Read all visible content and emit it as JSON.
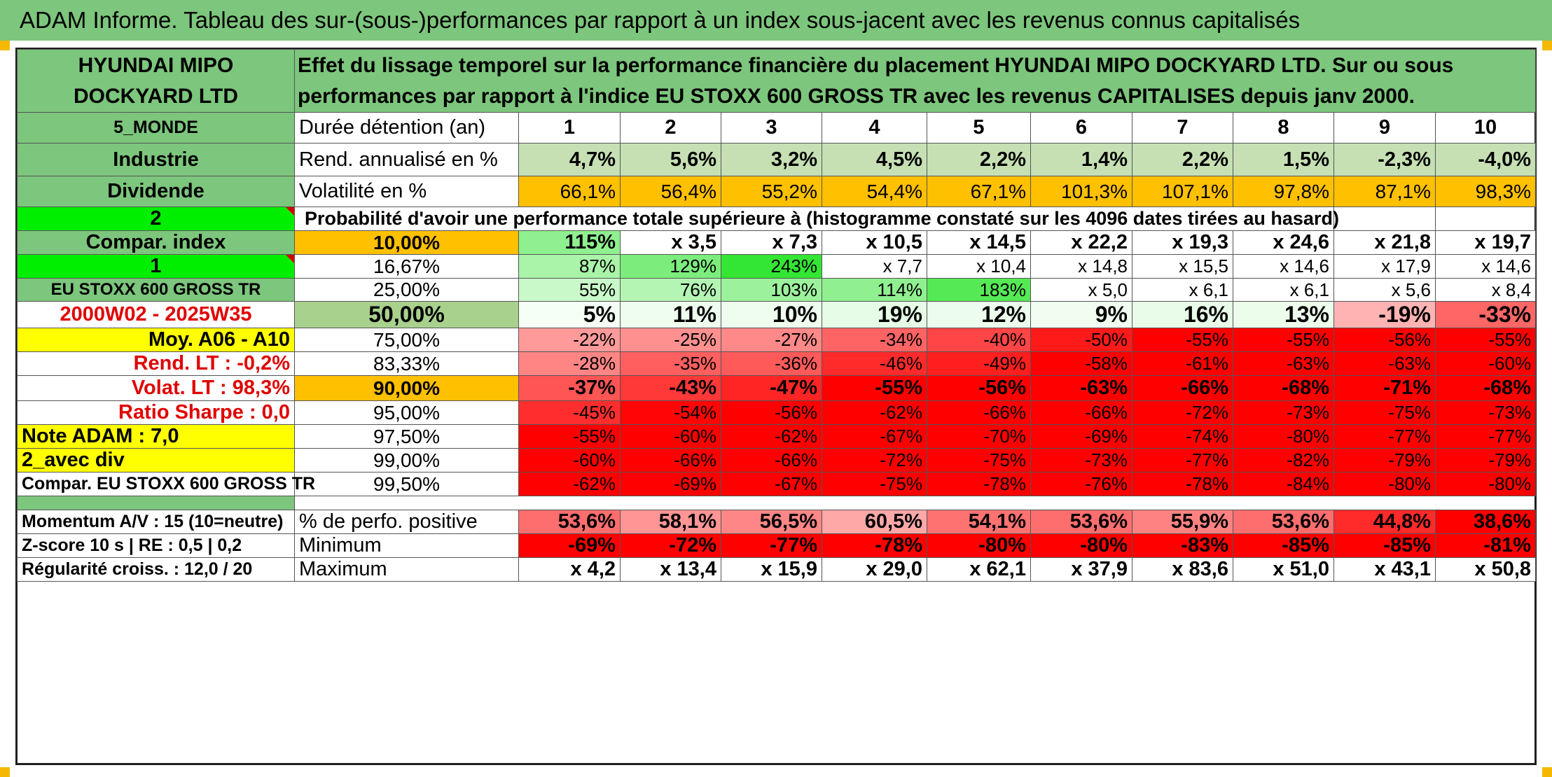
{
  "title": "ADAM Informe. Tableau des sur-(sous-)performances par rapport à un index sous-jacent avec les revenus connus capitalisés",
  "company": "HYUNDAI MIPO DOCKYARD LTD",
  "description": "Effet du lissage temporel sur la performance financière du placement HYUNDAI MIPO DOCKYARD LTD. Sur ou sous performances par rapport à l'indice EU STOXX 600 GROSS TR avec les revenus CAPITALISES depuis janv 2000.",
  "colors": {
    "green_header": "#7dc67d",
    "light_green": "#c6e0b4",
    "orange": "#ffc000",
    "bright_green": "#00ee00",
    "yellow": "#ffff00",
    "red_text": "#e00000"
  },
  "left_panel": [
    {
      "text": "5_MONDE",
      "bg": "#7dc67d",
      "color": "#000000",
      "bold": true,
      "align": "center",
      "size": 25
    },
    {
      "text": "Industrie",
      "bg": "#7dc67d",
      "color": "#000000",
      "bold": true,
      "align": "center",
      "size": 29
    },
    {
      "text": "Dividende",
      "bg": "#7dc67d",
      "color": "#000000",
      "bold": true,
      "align": "center",
      "size": 29
    },
    {
      "text": "2",
      "bg": "#00ee00",
      "color": "#000000",
      "bold": true,
      "align": "center",
      "size": 29,
      "mark": true
    },
    {
      "text": "Compar. index",
      "bg": "#7dc67d",
      "color": "#000000",
      "bold": true,
      "align": "center",
      "size": 29
    },
    {
      "text": "1",
      "bg": "#00ee00",
      "color": "#000000",
      "bold": true,
      "align": "center",
      "size": 29,
      "mark": true
    },
    {
      "text": "EU STOXX 600 GROSS TR",
      "bg": "#7dc67d",
      "color": "#000000",
      "bold": true,
      "align": "center",
      "size": 24
    },
    {
      "text": "2000W02 - 2025W35",
      "bg": "#ffffff",
      "color": "#e00000",
      "bold": true,
      "align": "center",
      "size": 29
    },
    {
      "text": "Moy. A06 - A10",
      "bg": "#ffff00",
      "color": "#000000",
      "bold": true,
      "align": "right",
      "size": 29
    },
    {
      "text": "Rend. LT :    -0,2%",
      "bg": "#ffffff",
      "color": "#e00000",
      "bold": true,
      "align": "right",
      "size": 29
    },
    {
      "text": "Volat. LT :    98,3%",
      "bg": "#ffffff",
      "color": "#e00000",
      "bold": true,
      "align": "right",
      "size": 29
    },
    {
      "text": "Ratio Sharpe :     0,0",
      "bg": "#ffffff",
      "color": "#e00000",
      "bold": true,
      "align": "right",
      "size": 29
    },
    {
      "text": "Note ADAM : 7,0",
      "bg": "#ffff00",
      "color": "#000000",
      "bold": true,
      "align": "left",
      "size": 29
    },
    {
      "text": "2_avec div",
      "bg": "#ffff00",
      "color": "#000000",
      "bold": true,
      "align": "left",
      "size": 29
    },
    {
      "text": "Compar. EU STOXX 600 GROSS TR",
      "bg": "#ffffff",
      "color": "#000000",
      "bold": true,
      "align": "center",
      "size": 25
    },
    {
      "text": "",
      "bg": "#7dc67d",
      "color": "#000000",
      "bold": false,
      "align": "center",
      "size": 25
    },
    {
      "text": "Momentum A/V : 15 (10=neutre)",
      "bg": "#ffffff",
      "color": "#000000",
      "bold": true,
      "align": "left",
      "size": 25
    },
    {
      "text": "Z-score 10 s | RE : 0,5 | 0,2",
      "bg": "#ffffff",
      "color": "#000000",
      "bold": true,
      "align": "left",
      "size": 25
    },
    {
      "text": "Régularité croiss. : 12,0 / 20",
      "bg": "#ffffff",
      "color": "#000000",
      "bold": true,
      "align": "left",
      "size": 25
    }
  ],
  "holding_label": "Durée détention (an)",
  "years": [
    "1",
    "2",
    "3",
    "4",
    "5",
    "6",
    "7",
    "8",
    "9",
    "10"
  ],
  "rend_label": "Rend. annualisé en %",
  "rend_values": [
    "4,7%",
    "5,6%",
    "3,2%",
    "4,5%",
    "2,2%",
    "1,4%",
    "2,2%",
    "1,5%",
    "-2,3%",
    "-4,0%"
  ],
  "vol_label": "Volatilité en %",
  "vol_values": [
    "66,1%",
    "56,4%",
    "55,2%",
    "54,4%",
    "67,1%",
    "101,3%",
    "107,1%",
    "97,8%",
    "87,1%",
    "98,3%"
  ],
  "prob_title": "Probabilité d'avoir une performance totale supérieure à (histogramme constaté sur les 4096 dates tirées au hasard)",
  "percentile_rows": [
    {
      "pct": "10,00%",
      "pct_bg": "#ffc000",
      "bold": true,
      "cells": [
        {
          "v": "115%",
          "bg": "#8ff08f"
        },
        {
          "v": "x 3,5",
          "bg": "#ffffff"
        },
        {
          "v": "x 7,3",
          "bg": "#ffffff"
        },
        {
          "v": "x 10,5",
          "bg": "#ffffff"
        },
        {
          "v": "x 14,5",
          "bg": "#ffffff"
        },
        {
          "v": "x 22,2",
          "bg": "#ffffff"
        },
        {
          "v": "x 19,3",
          "bg": "#ffffff"
        },
        {
          "v": "x 24,6",
          "bg": "#ffffff"
        },
        {
          "v": "x 21,8",
          "bg": "#ffffff"
        },
        {
          "v": "x 19,7",
          "bg": "#ffffff"
        }
      ]
    },
    {
      "pct": "16,67%",
      "pct_bg": "#ffffff",
      "bold": false,
      "cells": [
        {
          "v": "87%",
          "bg": "#a9f4a9"
        },
        {
          "v": "129%",
          "bg": "#7ced7c"
        },
        {
          "v": "243%",
          "bg": "#33e633"
        },
        {
          "v": "x 7,7",
          "bg": "#ffffff"
        },
        {
          "v": "x 10,4",
          "bg": "#ffffff"
        },
        {
          "v": "x 14,8",
          "bg": "#ffffff"
        },
        {
          "v": "x 15,5",
          "bg": "#ffffff"
        },
        {
          "v": "x 14,6",
          "bg": "#ffffff"
        },
        {
          "v": "x 17,9",
          "bg": "#ffffff"
        },
        {
          "v": "x 14,6",
          "bg": "#ffffff"
        }
      ]
    },
    {
      "pct": "25,00%",
      "pct_bg": "#ffffff",
      "bold": false,
      "cells": [
        {
          "v": "55%",
          "bg": "#c9f8c9"
        },
        {
          "v": "76%",
          "bg": "#b4f5b4"
        },
        {
          "v": "103%",
          "bg": "#9cf29c"
        },
        {
          "v": "114%",
          "bg": "#90f090"
        },
        {
          "v": "183%",
          "bg": "#55ea55"
        },
        {
          "v": "x 5,0",
          "bg": "#ffffff"
        },
        {
          "v": "x 6,1",
          "bg": "#ffffff"
        },
        {
          "v": "x 6,1",
          "bg": "#ffffff"
        },
        {
          "v": "x 5,6",
          "bg": "#ffffff"
        },
        {
          "v": "x 8,4",
          "bg": "#ffffff"
        }
      ]
    },
    {
      "pct": "50,00%",
      "pct_bg": "#a9d18e",
      "bold": true,
      "cells": [
        {
          "v": "5%",
          "bg": "#f5fff5"
        },
        {
          "v": "11%",
          "bg": "#eefdee"
        },
        {
          "v": "10%",
          "bg": "#effdef"
        },
        {
          "v": "19%",
          "bg": "#e6fce6"
        },
        {
          "v": "12%",
          "bg": "#edfded"
        },
        {
          "v": "9%",
          "bg": "#f0fdf0"
        },
        {
          "v": "16%",
          "bg": "#e9fce9"
        },
        {
          "v": "13%",
          "bg": "#ecfdec"
        },
        {
          "v": "-19%",
          "bg": "#ffb3b3"
        },
        {
          "v": "-33%",
          "bg": "#ff6666"
        }
      ]
    },
    {
      "pct": "75,00%",
      "pct_bg": "#ffffff",
      "bold": false,
      "cells": [
        {
          "v": "-22%",
          "bg": "#ff9a9a"
        },
        {
          "v": "-25%",
          "bg": "#ff9090"
        },
        {
          "v": "-27%",
          "bg": "#ff8888"
        },
        {
          "v": "-34%",
          "bg": "#ff6464"
        },
        {
          "v": "-40%",
          "bg": "#ff4545"
        },
        {
          "v": "-50%",
          "bg": "#ff1a1a"
        },
        {
          "v": "-55%",
          "bg": "#ff0000"
        },
        {
          "v": "-55%",
          "bg": "#ff0000"
        },
        {
          "v": "-56%",
          "bg": "#ff0000"
        },
        {
          "v": "-55%",
          "bg": "#ff0000"
        }
      ]
    },
    {
      "pct": "83,33%",
      "pct_bg": "#ffffff",
      "bold": false,
      "cells": [
        {
          "v": "-28%",
          "bg": "#ff8585"
        },
        {
          "v": "-35%",
          "bg": "#ff5f5f"
        },
        {
          "v": "-36%",
          "bg": "#ff5a5a"
        },
        {
          "v": "-46%",
          "bg": "#ff2a2a"
        },
        {
          "v": "-49%",
          "bg": "#ff1f1f"
        },
        {
          "v": "-58%",
          "bg": "#ff0000"
        },
        {
          "v": "-61%",
          "bg": "#ff0000"
        },
        {
          "v": "-63%",
          "bg": "#ff0000"
        },
        {
          "v": "-63%",
          "bg": "#ff0000"
        },
        {
          "v": "-60%",
          "bg": "#ff0000"
        }
      ]
    },
    {
      "pct": "90,00%",
      "pct_bg": "#ffc000",
      "bold": true,
      "cells": [
        {
          "v": "-37%",
          "bg": "#ff5555"
        },
        {
          "v": "-43%",
          "bg": "#ff3838"
        },
        {
          "v": "-47%",
          "bg": "#ff2525"
        },
        {
          "v": "-55%",
          "bg": "#ff0000"
        },
        {
          "v": "-56%",
          "bg": "#ff0000"
        },
        {
          "v": "-63%",
          "bg": "#ff0000"
        },
        {
          "v": "-66%",
          "bg": "#ff0000"
        },
        {
          "v": "-68%",
          "bg": "#ff0000"
        },
        {
          "v": "-71%",
          "bg": "#ff0000"
        },
        {
          "v": "-68%",
          "bg": "#ff0000"
        }
      ]
    },
    {
      "pct": "95,00%",
      "pct_bg": "#ffffff",
      "bold": false,
      "cells": [
        {
          "v": "-45%",
          "bg": "#ff2d2d"
        },
        {
          "v": "-54%",
          "bg": "#ff0505"
        },
        {
          "v": "-56%",
          "bg": "#ff0000"
        },
        {
          "v": "-62%",
          "bg": "#ff0000"
        },
        {
          "v": "-66%",
          "bg": "#ff0000"
        },
        {
          "v": "-66%",
          "bg": "#ff0000"
        },
        {
          "v": "-72%",
          "bg": "#ff0000"
        },
        {
          "v": "-73%",
          "bg": "#ff0000"
        },
        {
          "v": "-75%",
          "bg": "#ff0000"
        },
        {
          "v": "-73%",
          "bg": "#ff0000"
        }
      ]
    },
    {
      "pct": "97,50%",
      "pct_bg": "#ffffff",
      "bold": false,
      "cells": [
        {
          "v": "-55%",
          "bg": "#ff0000"
        },
        {
          "v": "-60%",
          "bg": "#ff0000"
        },
        {
          "v": "-62%",
          "bg": "#ff0000"
        },
        {
          "v": "-67%",
          "bg": "#ff0000"
        },
        {
          "v": "-70%",
          "bg": "#ff0000"
        },
        {
          "v": "-69%",
          "bg": "#ff0000"
        },
        {
          "v": "-74%",
          "bg": "#ff0000"
        },
        {
          "v": "-80%",
          "bg": "#ff0000"
        },
        {
          "v": "-77%",
          "bg": "#ff0000"
        },
        {
          "v": "-77%",
          "bg": "#ff0000"
        }
      ]
    },
    {
      "pct": "99,00%",
      "pct_bg": "#ffffff",
      "bold": false,
      "cells": [
        {
          "v": "-60%",
          "bg": "#ff0000"
        },
        {
          "v": "-66%",
          "bg": "#ff0000"
        },
        {
          "v": "-66%",
          "bg": "#ff0000"
        },
        {
          "v": "-72%",
          "bg": "#ff0000"
        },
        {
          "v": "-75%",
          "bg": "#ff0000"
        },
        {
          "v": "-73%",
          "bg": "#ff0000"
        },
        {
          "v": "-77%",
          "bg": "#ff0000"
        },
        {
          "v": "-82%",
          "bg": "#ff0000"
        },
        {
          "v": "-79%",
          "bg": "#ff0000"
        },
        {
          "v": "-79%",
          "bg": "#ff0000"
        }
      ]
    },
    {
      "pct": "99,50%",
      "pct_bg": "#ffffff",
      "bold": false,
      "cells": [
        {
          "v": "-62%",
          "bg": "#ff0000"
        },
        {
          "v": "-69%",
          "bg": "#ff0000"
        },
        {
          "v": "-67%",
          "bg": "#ff0000"
        },
        {
          "v": "-75%",
          "bg": "#ff0000"
        },
        {
          "v": "-78%",
          "bg": "#ff0000"
        },
        {
          "v": "-76%",
          "bg": "#ff0000"
        },
        {
          "v": "-78%",
          "bg": "#ff0000"
        },
        {
          "v": "-84%",
          "bg": "#ff0000"
        },
        {
          "v": "-80%",
          "bg": "#ff0000"
        },
        {
          "v": "-80%",
          "bg": "#ff0000"
        }
      ]
    }
  ],
  "stats_rows": [
    {
      "label": "% de perfo. positive",
      "cells": [
        {
          "v": "53,6%",
          "bg": "#ff6e6e"
        },
        {
          "v": "58,1%",
          "bg": "#ff9595"
        },
        {
          "v": "56,5%",
          "bg": "#ff8686"
        },
        {
          "v": "60,5%",
          "bg": "#ffa8a8"
        },
        {
          "v": "54,1%",
          "bg": "#ff7272"
        },
        {
          "v": "53,6%",
          "bg": "#ff6e6e"
        },
        {
          "v": "55,9%",
          "bg": "#ff8282"
        },
        {
          "v": "53,6%",
          "bg": "#ff6e6e"
        },
        {
          "v": "44,8%",
          "bg": "#ff2a2a"
        },
        {
          "v": "38,6%",
          "bg": "#ff0000"
        }
      ]
    },
    {
      "label": "Minimum",
      "cells": [
        {
          "v": "-69%",
          "bg": "#ff0000"
        },
        {
          "v": "-72%",
          "bg": "#ff0000"
        },
        {
          "v": "-77%",
          "bg": "#ff0000"
        },
        {
          "v": "-78%",
          "bg": "#ff0000"
        },
        {
          "v": "-80%",
          "bg": "#ff0000"
        },
        {
          "v": "-80%",
          "bg": "#ff0000"
        },
        {
          "v": "-83%",
          "bg": "#ff0000"
        },
        {
          "v": "-85%",
          "bg": "#ff0000"
        },
        {
          "v": "-85%",
          "bg": "#ff0000"
        },
        {
          "v": "-81%",
          "bg": "#ff0000"
        }
      ]
    },
    {
      "label": "Maximum",
      "cells": [
        {
          "v": "x 4,2",
          "bg": "#ffffff"
        },
        {
          "v": "x 13,4",
          "bg": "#ffffff"
        },
        {
          "v": "x 15,9",
          "bg": "#ffffff"
        },
        {
          "v": "x 29,0",
          "bg": "#ffffff"
        },
        {
          "v": "x 62,1",
          "bg": "#ffffff"
        },
        {
          "v": "x 37,9",
          "bg": "#ffffff"
        },
        {
          "v": "x 83,6",
          "bg": "#ffffff"
        },
        {
          "v": "x 51,0",
          "bg": "#ffffff"
        },
        {
          "v": "x 43,1",
          "bg": "#ffffff"
        },
        {
          "v": "x 50,8",
          "bg": "#ffffff"
        }
      ]
    }
  ]
}
